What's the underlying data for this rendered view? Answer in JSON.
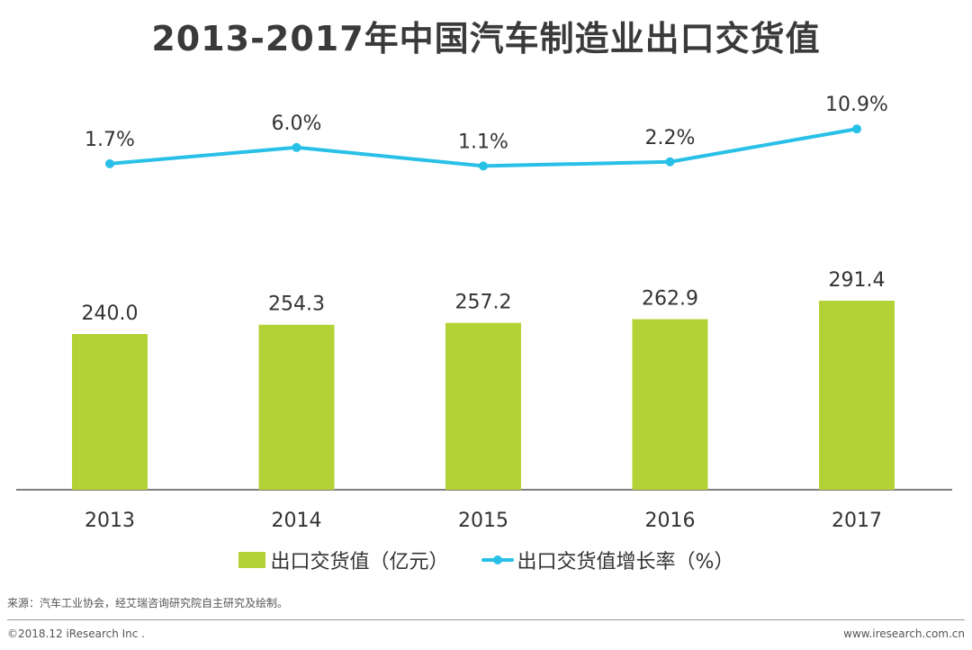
{
  "chart_data": {
    "type": "bar",
    "title": "2013-2017年中国汽车制造业出口交货值",
    "categories": [
      "2013",
      "2014",
      "2015",
      "2016",
      "2017"
    ],
    "series": [
      {
        "name": "出口交货值（亿元）",
        "type": "bar",
        "values": [
          240.0,
          254.3,
          257.2,
          262.9,
          291.4
        ],
        "labels": [
          "240.0",
          "254.3",
          "257.2",
          "262.9",
          "291.4"
        ],
        "color": "#b2d235"
      },
      {
        "name": "出口交货值增长率（%）",
        "type": "line",
        "values": [
          1.7,
          6.0,
          1.1,
          2.2,
          10.9
        ],
        "labels": [
          "1.7%",
          "6.0%",
          "1.1%",
          "2.2%",
          "10.9%"
        ],
        "color": "#29c0e8"
      }
    ],
    "legend_position": "bottom",
    "grid": false
  },
  "source": "来源：汽车工业协会，经艾瑞咨询研究院自主研究及绘制。",
  "copyright": "©2018.12 iResearch Inc .",
  "website": "www.iresearch.com.cn"
}
